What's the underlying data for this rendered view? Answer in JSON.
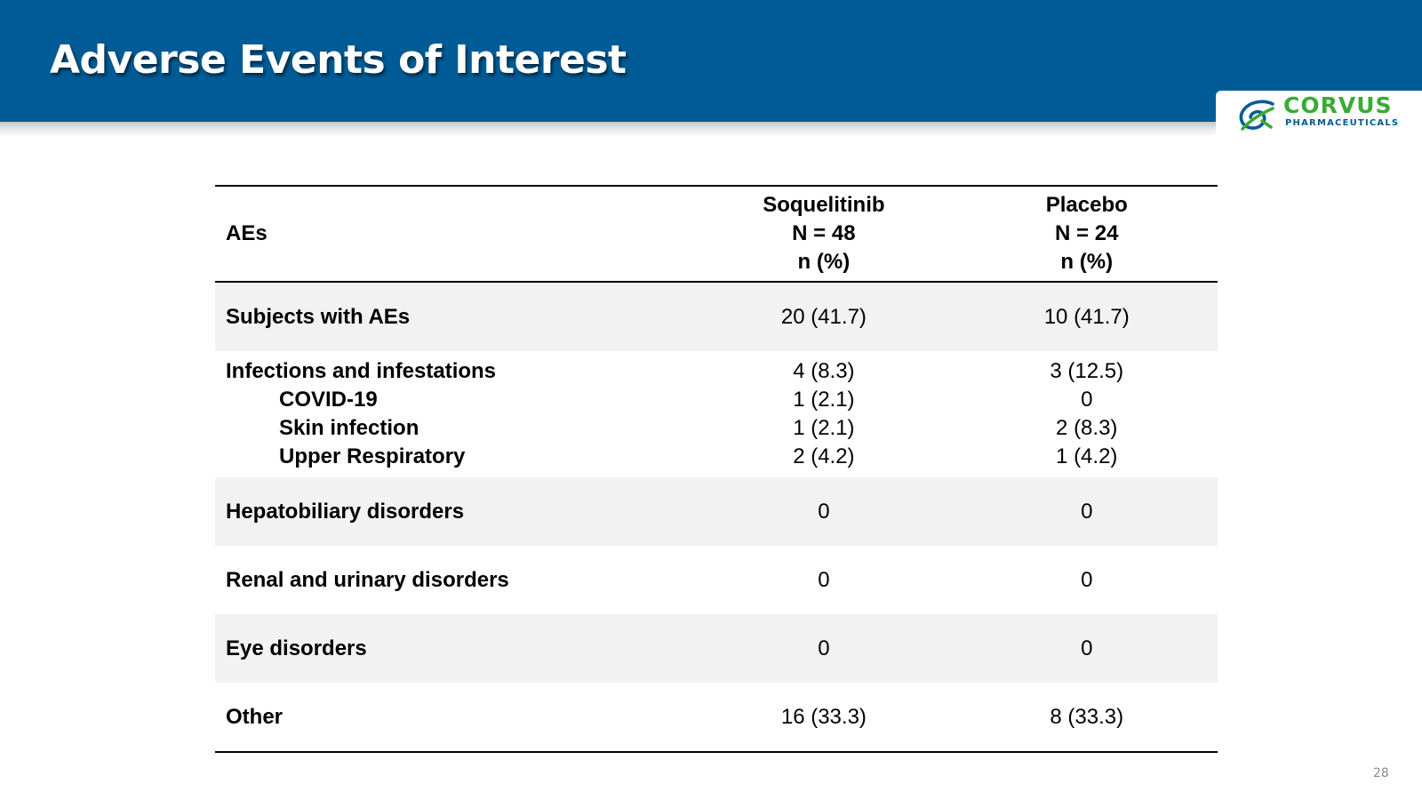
{
  "slide": {
    "title": "Adverse Events of Interest",
    "page_number": "28"
  },
  "logo": {
    "name": "CORVUS",
    "subtitle": "PHARMACEUTICALS",
    "colors": {
      "green": "#3aaa35",
      "blue": "#005b96"
    }
  },
  "theme": {
    "header_color": "#005b96",
    "row_shade": "#f2f2f2"
  },
  "table": {
    "header": {
      "ae_label": "AEs",
      "drug_name": "Soquelitinib",
      "drug_n": "N = 48",
      "drug_unit": "n (%)",
      "placebo_name": "Placebo",
      "placebo_n": "N = 24",
      "placebo_unit": "n (%)"
    },
    "rows": {
      "subjects": {
        "label": "Subjects with AEs",
        "drug": "20 (41.7)",
        "placebo": "10 (41.7)"
      },
      "infections": {
        "label": "Infections and infestations",
        "drug": "4 (8.3)",
        "placebo": "3 (12.5)",
        "sub": [
          {
            "label": "COVID-19",
            "drug": "1 (2.1)",
            "placebo": "0"
          },
          {
            "label": "Skin infection",
            "drug": "1 (2.1)",
            "placebo": "2 (8.3)"
          },
          {
            "label": "Upper Respiratory",
            "drug": "2 (4.2)",
            "placebo": "1 (4.2)"
          }
        ]
      },
      "hepatobiliary": {
        "label": "Hepatobiliary disorders",
        "drug": "0",
        "placebo": "0"
      },
      "renal": {
        "label": "Renal and urinary disorders",
        "drug": "0",
        "placebo": "0"
      },
      "eye": {
        "label": "Eye disorders",
        "drug": "0",
        "placebo": "0"
      },
      "other": {
        "label": "Other",
        "drug": "16 (33.3)",
        "placebo": "8 (33.3)"
      }
    }
  }
}
